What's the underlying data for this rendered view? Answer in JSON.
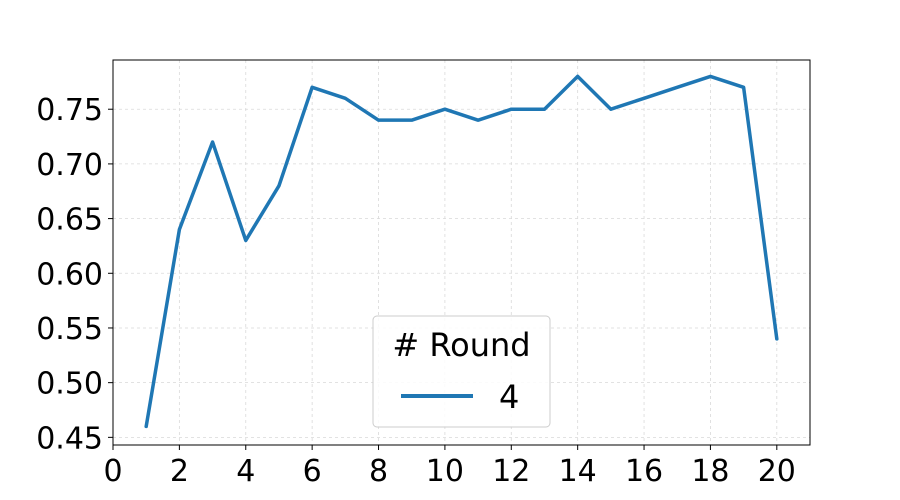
{
  "chart_data": {
    "type": "line",
    "xlim": [
      0,
      21
    ],
    "ylim": [
      0.443,
      0.795
    ],
    "x_ticks": [
      0,
      2,
      4,
      6,
      8,
      10,
      12,
      14,
      16,
      18,
      20
    ],
    "x_tick_labels": [
      "0",
      "2",
      "4",
      "6",
      "8",
      "10",
      "12",
      "14",
      "16",
      "18",
      "20"
    ],
    "y_ticks": [
      0.45,
      0.5,
      0.55,
      0.6,
      0.65,
      0.7,
      0.75
    ],
    "y_tick_labels": [
      "0.45",
      "0.50",
      "0.55",
      "0.60",
      "0.65",
      "0.70",
      "0.75"
    ],
    "grid": true,
    "legend": {
      "title": "# Round",
      "placement": "bottom-center"
    },
    "series": [
      {
        "name": "4",
        "color": "#1f77b4",
        "x": [
          1,
          2,
          3,
          4,
          5,
          6,
          7,
          8,
          9,
          10,
          11,
          12,
          13,
          14,
          15,
          16,
          17,
          18,
          19,
          20
        ],
        "y": [
          0.46,
          0.64,
          0.72,
          0.63,
          0.68,
          0.77,
          0.76,
          0.74,
          0.74,
          0.75,
          0.74,
          0.75,
          0.75,
          0.78,
          0.75,
          0.76,
          0.77,
          0.78,
          0.77,
          0.54
        ]
      }
    ]
  }
}
